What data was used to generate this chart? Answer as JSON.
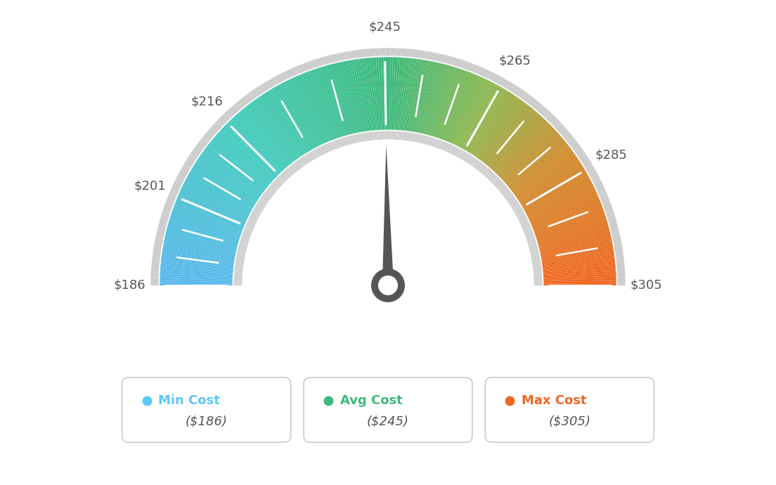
{
  "min_val": 186,
  "max_val": 305,
  "avg_val": 245,
  "tick_labels": [
    "$186",
    "$201",
    "$216",
    "$245",
    "$265",
    "$285",
    "$305"
  ],
  "tick_values": [
    186,
    201,
    216,
    245,
    265,
    285,
    305
  ],
  "legend": [
    {
      "label": "Min Cost",
      "value": "($186)",
      "color": "#5bc8f5"
    },
    {
      "label": "Avg Cost",
      "value": "($245)",
      "color": "#3dba7e"
    },
    {
      "label": "Max Cost",
      "value": "($305)",
      "color": "#f26522"
    }
  ],
  "background_color": "#ffffff",
  "needle_value": 245,
  "color_stops": [
    [
      0.0,
      [
        0.35,
        0.72,
        0.93
      ]
    ],
    [
      0.25,
      [
        0.27,
        0.8,
        0.75
      ]
    ],
    [
      0.5,
      [
        0.24,
        0.73,
        0.49
      ]
    ],
    [
      0.65,
      [
        0.55,
        0.72,
        0.32
      ]
    ],
    [
      0.8,
      [
        0.82,
        0.55,
        0.18
      ]
    ],
    [
      1.0,
      [
        0.95,
        0.4,
        0.13
      ]
    ]
  ]
}
